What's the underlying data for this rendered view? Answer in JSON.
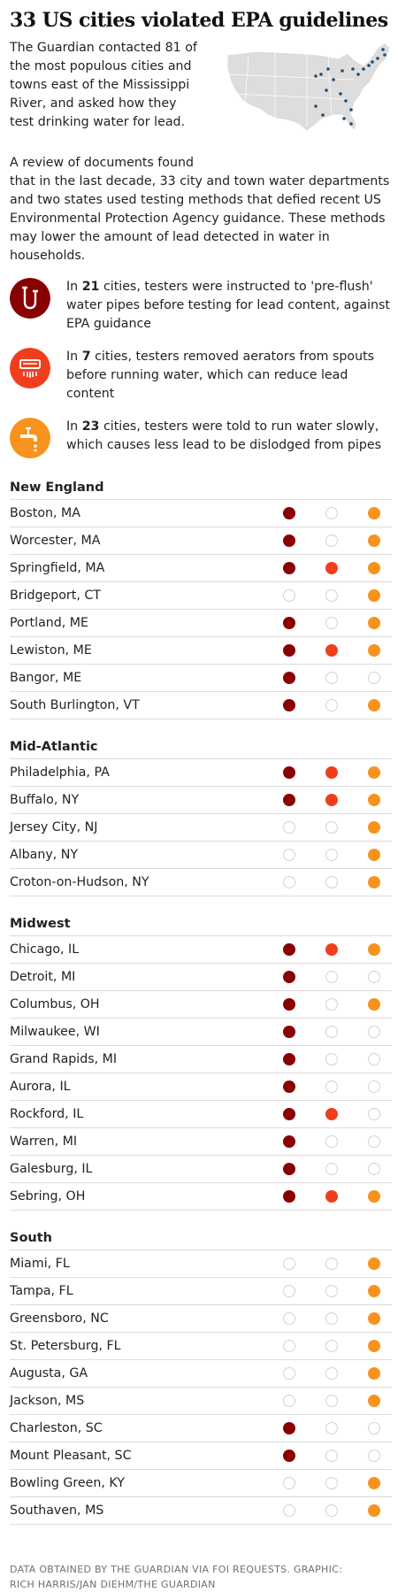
{
  "colors": {
    "method1": "#8a0000",
    "method2": "#f03e1d",
    "method3": "#f7931d",
    "map_land": "#dddddd",
    "map_dot": "#1b4f7d"
  },
  "header": {
    "title": "33 US cities violated EPA guidelines"
  },
  "intro": {
    "lines": [
      "The Guardian contacted 81 of",
      "the most populous cities and",
      "towns east of the Mississippi",
      "River, and asked how they",
      "test drinking water for lead."
    ],
    "review_lines": [
      "A review of documents found",
      "that in the last decade, 33 city and town water departments",
      "and two states used testing methods that defied recent US",
      "Environmental Protection Agency guidance. These methods",
      "may lower the amount of lead detected in water in",
      "households."
    ]
  },
  "methods": [
    {
      "icon": "pipe-icon",
      "pre": "In ",
      "count": "21",
      "lines": [
        " cities, testers were instructed to 'pre-flush'",
        "water pipes before testing for lead content, against",
        "EPA guidance"
      ]
    },
    {
      "icon": "aerator-icon",
      "pre": "In ",
      "count": "7",
      "lines": [
        " cities, testers removed aerators from spouts",
        "before running water, which can reduce lead",
        "content"
      ]
    },
    {
      "icon": "faucet-icon",
      "pre": "In ",
      "count": "23",
      "lines": [
        " cities, testers were told to run water slowly,",
        "which causes less lead to be dislodged from pipes"
      ]
    }
  ],
  "regions": [
    {
      "name": "New England",
      "cities": [
        {
          "name": "Boston, MA",
          "flags": [
            1,
            0,
            1
          ]
        },
        {
          "name": "Worcester, MA",
          "flags": [
            1,
            0,
            1
          ]
        },
        {
          "name": "Springfield, MA",
          "flags": [
            1,
            1,
            1
          ]
        },
        {
          "name": "Bridgeport, CT",
          "flags": [
            0,
            0,
            1
          ]
        },
        {
          "name": "Portland, ME",
          "flags": [
            1,
            0,
            1
          ]
        },
        {
          "name": "Lewiston, ME",
          "flags": [
            1,
            1,
            1
          ]
        },
        {
          "name": "Bangor, ME",
          "flags": [
            1,
            0,
            0
          ]
        },
        {
          "name": "South Burlington, VT",
          "flags": [
            1,
            0,
            1
          ]
        }
      ]
    },
    {
      "name": "Mid-Atlantic",
      "cities": [
        {
          "name": "Philadelphia, PA",
          "flags": [
            1,
            1,
            1
          ]
        },
        {
          "name": "Buffalo, NY",
          "flags": [
            1,
            1,
            1
          ]
        },
        {
          "name": "Jersey City, NJ",
          "flags": [
            0,
            0,
            1
          ]
        },
        {
          "name": "Albany, NY",
          "flags": [
            0,
            0,
            1
          ]
        },
        {
          "name": "Croton-on-Hudson, NY",
          "flags": [
            0,
            0,
            1
          ]
        }
      ]
    },
    {
      "name": "Midwest",
      "cities": [
        {
          "name": "Chicago, IL",
          "flags": [
            1,
            1,
            1
          ]
        },
        {
          "name": "Detroit, MI",
          "flags": [
            1,
            0,
            0
          ]
        },
        {
          "name": "Columbus, OH",
          "flags": [
            1,
            0,
            1
          ]
        },
        {
          "name": "Milwaukee, WI",
          "flags": [
            1,
            0,
            0
          ]
        },
        {
          "name": "Grand Rapids, MI",
          "flags": [
            1,
            0,
            0
          ]
        },
        {
          "name": "Aurora, IL",
          "flags": [
            1,
            0,
            0
          ]
        },
        {
          "name": "Rockford, IL",
          "flags": [
            1,
            1,
            0
          ]
        },
        {
          "name": "Warren, MI",
          "flags": [
            1,
            0,
            0
          ]
        },
        {
          "name": "Galesburg, IL",
          "flags": [
            1,
            0,
            0
          ]
        },
        {
          "name": "Sebring, OH",
          "flags": [
            1,
            1,
            1
          ]
        }
      ]
    },
    {
      "name": "South",
      "cities": [
        {
          "name": "Miami, FL",
          "flags": [
            0,
            0,
            1
          ]
        },
        {
          "name": "Tampa, FL",
          "flags": [
            0,
            0,
            1
          ]
        },
        {
          "name": "Greensboro, NC",
          "flags": [
            0,
            0,
            1
          ]
        },
        {
          "name": "St. Petersburg, FL",
          "flags": [
            0,
            0,
            1
          ]
        },
        {
          "name": "Augusta, GA",
          "flags": [
            0,
            0,
            1
          ]
        },
        {
          "name": "Jackson, MS",
          "flags": [
            0,
            0,
            1
          ]
        },
        {
          "name": "Charleston, SC",
          "flags": [
            1,
            0,
            0
          ]
        },
        {
          "name": "Mount Pleasant, SC",
          "flags": [
            1,
            0,
            0
          ]
        },
        {
          "name": "Bowling Green, KY",
          "flags": [
            0,
            0,
            1
          ]
        },
        {
          "name": "Southaven, MS",
          "flags": [
            0,
            0,
            1
          ]
        }
      ]
    }
  ],
  "footer": {
    "lines": [
      "DATA OBTAINED BY THE GUARDIAN VIA FOI REQUESTS. GRAPHIC:",
      "RICH HARRIS/JAN DIEHM/THE GUARDIAN"
    ]
  }
}
